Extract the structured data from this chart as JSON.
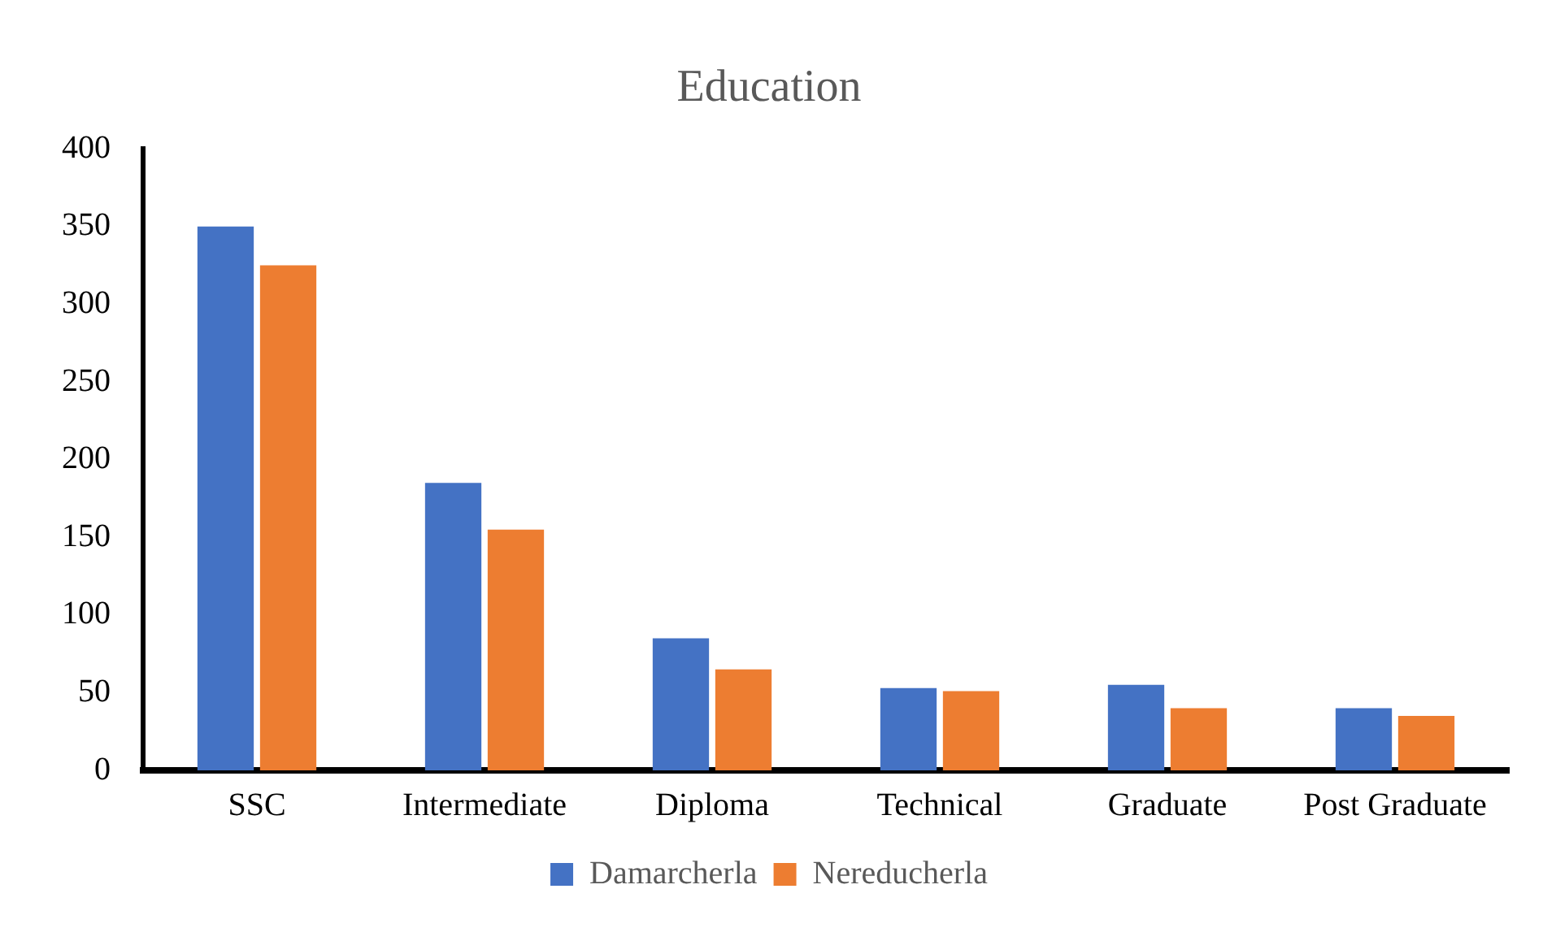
{
  "chart_data": {
    "type": "bar",
    "title": "Education",
    "categories": [
      "SSC",
      "Intermediate",
      "Diploma",
      "Technical",
      "Graduate",
      "Post Graduate"
    ],
    "series": [
      {
        "name": "Damarcherla",
        "color": "#4472c4",
        "values": [
          350,
          185,
          85,
          53,
          55,
          40
        ]
      },
      {
        "name": "Nereducherla",
        "color": "#ed7d31",
        "values": [
          325,
          155,
          65,
          51,
          40,
          35
        ]
      }
    ],
    "ylim": [
      0,
      400
    ],
    "yticks": [
      0,
      50,
      100,
      150,
      200,
      250,
      300,
      350,
      400
    ],
    "grid": false,
    "legend": "bottom"
  }
}
